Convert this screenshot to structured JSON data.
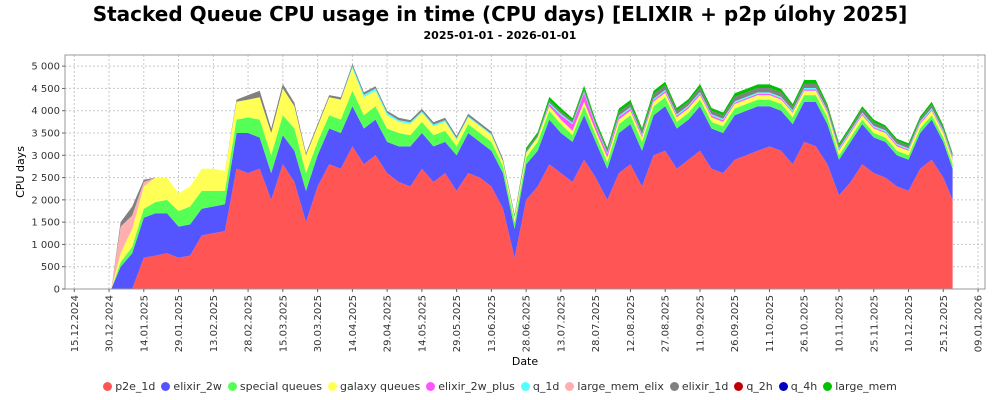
{
  "chart_data": {
    "type": "area",
    "stacked": true,
    "title": "Stacked Queue CPU usage in time (CPU days) [ELIXIR + p2p úlohy 2025]",
    "subtitle": "2025-01-01 - 2026-01-01",
    "xlabel": "Date",
    "ylabel": "CPU days",
    "ylim": [
      0,
      5250
    ],
    "yticks": [
      0,
      500,
      1000,
      1500,
      2000,
      2500,
      3000,
      3500,
      4000,
      4500,
      5000
    ],
    "ytick_labels": [
      "0",
      "500",
      "1 000",
      "1 500",
      "2 000",
      "2 500",
      "3 000",
      "3 500",
      "4 000",
      "4 500",
      "5 000"
    ],
    "xlim_days": [
      -21,
      376
    ],
    "xticks_days": [
      -17,
      -2,
      13,
      28,
      43,
      58,
      73,
      88,
      103,
      118,
      133,
      148,
      163,
      178,
      193,
      208,
      223,
      238,
      253,
      268,
      283,
      298,
      313,
      328,
      343,
      358,
      373
    ],
    "xtick_labels": [
      "15.12.2024",
      "30.12.2024",
      "14.01.2025",
      "29.01.2025",
      "13.02.2025",
      "28.02.2025",
      "15.03.2025",
      "30.03.2025",
      "14.04.2025",
      "29.04.2025",
      "14.05.2025",
      "29.05.2025",
      "13.06.2025",
      "28.06.2025",
      "13.07.2025",
      "28.07.2025",
      "12.08.2025",
      "27.08.2025",
      "11.09.2025",
      "26.09.2025",
      "11.10.2025",
      "26.10.2025",
      "10.11.2025",
      "25.11.2025",
      "10.12.2025",
      "25.12.2025",
      "09.01.2026"
    ],
    "x_days": [
      -1,
      3,
      8,
      13,
      18,
      23,
      28,
      33,
      38,
      43,
      48,
      53,
      58,
      63,
      68,
      73,
      78,
      83,
      88,
      93,
      98,
      103,
      108,
      113,
      118,
      123,
      128,
      133,
      138,
      143,
      148,
      153,
      158,
      163,
      168,
      173,
      178,
      183,
      188,
      193,
      198,
      203,
      208,
      213,
      218,
      223,
      228,
      233,
      238,
      243,
      248,
      253,
      258,
      263,
      268,
      273,
      278,
      283,
      288,
      293,
      298,
      303,
      308,
      313,
      318,
      323,
      328,
      333,
      338,
      343,
      348,
      353,
      358,
      362
    ],
    "series": [
      {
        "name": "p2e_1d",
        "color": "#ff5555",
        "values": [
          0,
          0,
          0,
          700,
          750,
          800,
          700,
          750,
          1200,
          1250,
          1300,
          2700,
          2600,
          2700,
          2000,
          2800,
          2400,
          1500,
          2300,
          2800,
          2700,
          3200,
          2800,
          3000,
          2600,
          2400,
          2300,
          2700,
          2400,
          2600,
          2200,
          2600,
          2500,
          2300,
          1800,
          700,
          2000,
          2300,
          2800,
          2600,
          2400,
          2900,
          2500,
          2000,
          2600,
          2800,
          2300,
          3000,
          3100,
          2700,
          2900,
          3100,
          2700,
          2600,
          2900,
          3000,
          3100,
          3200,
          3100,
          2800,
          3300,
          3200,
          2800,
          2100,
          2400,
          2800,
          2600,
          2500,
          2300,
          2200,
          2700,
          2900,
          2500,
          2000
        ]
      },
      {
        "name": "elixir_2w",
        "color": "#5555ff",
        "values": [
          0,
          500,
          800,
          900,
          950,
          900,
          700,
          700,
          600,
          600,
          600,
          800,
          900,
          700,
          600,
          650,
          700,
          700,
          700,
          800,
          800,
          900,
          800,
          800,
          700,
          800,
          900,
          800,
          800,
          700,
          800,
          900,
          800,
          800,
          800,
          650,
          800,
          800,
          1000,
          900,
          900,
          1000,
          800,
          700,
          900,
          900,
          800,
          900,
          1000,
          900,
          900,
          1000,
          900,
          900,
          1000,
          1000,
          1000,
          900,
          900,
          900,
          900,
          1000,
          900,
          800,
          900,
          900,
          800,
          800,
          700,
          700,
          800,
          900,
          800,
          700
        ]
      },
      {
        "name": "special queues",
        "color": "#55ff55",
        "values": [
          0,
          100,
          150,
          200,
          250,
          300,
          350,
          400,
          400,
          350,
          300,
          300,
          350,
          400,
          400,
          450,
          500,
          400,
          300,
          300,
          300,
          350,
          300,
          300,
          300,
          300,
          250,
          250,
          250,
          250,
          200,
          200,
          200,
          200,
          150,
          150,
          150,
          200,
          200,
          200,
          150,
          200,
          150,
          150,
          200,
          200,
          200,
          200,
          200,
          150,
          150,
          150,
          150,
          150,
          150,
          150,
          150,
          150,
          150,
          150,
          150,
          150,
          150,
          100,
          100,
          100,
          100,
          100,
          100,
          100,
          100,
          100,
          100,
          100
        ]
      },
      {
        "name": "galaxy queues",
        "color": "#ffff55",
        "values": [
          0,
          200,
          400,
          500,
          550,
          500,
          400,
          450,
          500,
          500,
          450,
          400,
          400,
          500,
          500,
          600,
          500,
          400,
          350,
          400,
          450,
          500,
          400,
          350,
          300,
          250,
          250,
          200,
          200,
          200,
          150,
          150,
          150,
          150,
          100,
          100,
          100,
          100,
          100,
          100,
          100,
          100,
          100,
          100,
          100,
          100,
          100,
          100,
          100,
          100,
          100,
          100,
          100,
          100,
          100,
          100,
          100,
          100,
          100,
          100,
          100,
          100,
          100,
          100,
          100,
          100,
          100,
          100,
          100,
          100,
          100,
          100,
          100,
          100
        ]
      },
      {
        "name": "elixir_2w_plus",
        "color": "#ff55ff",
        "values": [
          0,
          0,
          0,
          0,
          0,
          0,
          0,
          0,
          0,
          0,
          0,
          0,
          0,
          0,
          0,
          0,
          0,
          0,
          0,
          0,
          0,
          0,
          0,
          0,
          0,
          0,
          0,
          0,
          0,
          0,
          0,
          0,
          0,
          0,
          0,
          0,
          0,
          0,
          50,
          100,
          150,
          200,
          100,
          80,
          60,
          50,
          40,
          40,
          40,
          40,
          40,
          40,
          40,
          40,
          30,
          30,
          30,
          30,
          30,
          30,
          30,
          30,
          30,
          30,
          30,
          30,
          30,
          30,
          30,
          30,
          30,
          30,
          30,
          30
        ]
      },
      {
        "name": "q_1d",
        "color": "#55ffff",
        "values": [
          0,
          0,
          0,
          0,
          0,
          0,
          0,
          0,
          0,
          0,
          0,
          0,
          0,
          0,
          0,
          0,
          0,
          0,
          0,
          0,
          0,
          50,
          60,
          50,
          50,
          40,
          40,
          40,
          40,
          40,
          30,
          30,
          30,
          30,
          20,
          20,
          20,
          20,
          30,
          30,
          30,
          30,
          30,
          30,
          30,
          30,
          30,
          30,
          30,
          30,
          30,
          30,
          30,
          30,
          30,
          30,
          30,
          30,
          30,
          30,
          30,
          30,
          30,
          30,
          30,
          30,
          30,
          30,
          30,
          30,
          30,
          30,
          30,
          30
        ]
      },
      {
        "name": "large_mem_elix",
        "color": "#ffafaf",
        "values": [
          0,
          600,
          300,
          100,
          0,
          0,
          0,
          0,
          0,
          0,
          0,
          0,
          0,
          0,
          0,
          0,
          0,
          0,
          0,
          0,
          0,
          0,
          0,
          0,
          0,
          0,
          0,
          0,
          0,
          0,
          0,
          0,
          0,
          0,
          0,
          0,
          0,
          0,
          0,
          0,
          0,
          0,
          0,
          0,
          0,
          0,
          0,
          0,
          0,
          0,
          0,
          0,
          0,
          0,
          0,
          0,
          0,
          0,
          0,
          0,
          0,
          0,
          0,
          0,
          0,
          0,
          0,
          0,
          0,
          0,
          0,
          0,
          0,
          0
        ]
      },
      {
        "name": "elixir_1d",
        "color": "#808080",
        "values": [
          0,
          100,
          200,
          50,
          0,
          0,
          0,
          0,
          0,
          0,
          0,
          50,
          100,
          150,
          100,
          100,
          80,
          50,
          50,
          50,
          50,
          50,
          50,
          50,
          50,
          50,
          50,
          50,
          50,
          50,
          50,
          50,
          50,
          50,
          50,
          50,
          50,
          50,
          50,
          50,
          50,
          50,
          50,
          50,
          80,
          80,
          80,
          100,
          100,
          80,
          80,
          100,
          80,
          80,
          100,
          100,
          100,
          100,
          100,
          80,
          100,
          100,
          80,
          60,
          60,
          80,
          80,
          60,
          60,
          60,
          60,
          80,
          60,
          50
        ]
      },
      {
        "name": "q_2h",
        "color": "#c00000",
        "values": [
          0,
          0,
          0,
          0,
          0,
          0,
          0,
          0,
          0,
          0,
          0,
          0,
          0,
          0,
          0,
          0,
          0,
          0,
          0,
          0,
          0,
          0,
          0,
          0,
          0,
          0,
          0,
          0,
          0,
          0,
          0,
          0,
          0,
          0,
          0,
          0,
          0,
          0,
          0,
          0,
          0,
          0,
          0,
          0,
          0,
          0,
          0,
          0,
          0,
          0,
          0,
          0,
          0,
          0,
          0,
          0,
          0,
          0,
          0,
          0,
          0,
          0,
          0,
          0,
          0,
          0,
          0,
          0,
          0,
          0,
          0,
          0,
          0,
          0
        ]
      },
      {
        "name": "q_4h",
        "color": "#0000c0",
        "values": [
          0,
          0,
          0,
          0,
          0,
          0,
          0,
          0,
          0,
          0,
          0,
          0,
          0,
          0,
          0,
          0,
          0,
          0,
          0,
          0,
          0,
          0,
          0,
          0,
          0,
          0,
          0,
          0,
          0,
          0,
          0,
          0,
          0,
          0,
          0,
          0,
          0,
          0,
          0,
          0,
          0,
          0,
          0,
          0,
          0,
          0,
          0,
          0,
          0,
          0,
          0,
          0,
          0,
          0,
          0,
          0,
          0,
          0,
          0,
          0,
          0,
          0,
          0,
          0,
          0,
          0,
          0,
          0,
          0,
          0,
          0,
          0,
          0,
          0
        ]
      },
      {
        "name": "large_mem",
        "color": "#00c000",
        "values": [
          0,
          0,
          0,
          0,
          0,
          0,
          0,
          0,
          0,
          0,
          0,
          0,
          0,
          0,
          0,
          0,
          0,
          0,
          0,
          0,
          0,
          0,
          0,
          0,
          0,
          0,
          0,
          0,
          0,
          0,
          0,
          0,
          0,
          0,
          0,
          0,
          50,
          50,
          80,
          80,
          50,
          80,
          60,
          60,
          80,
          80,
          60,
          80,
          80,
          60,
          60,
          80,
          60,
          60,
          80,
          80,
          80,
          80,
          80,
          60,
          80,
          80,
          60,
          50,
          50,
          60,
          60,
          50,
          50,
          50,
          50,
          60,
          50,
          40
        ]
      }
    ],
    "legend_position": "bottom",
    "grid": true
  }
}
